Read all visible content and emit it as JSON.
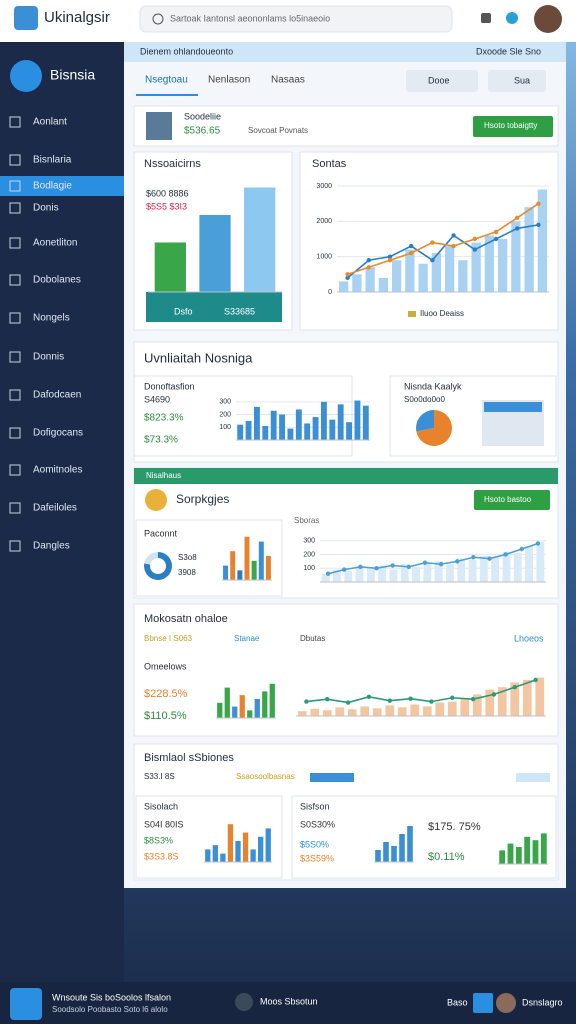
{
  "topbar": {
    "brand": "Ukinalgsir",
    "search": "Sartoak Iantonsl aeononlams lo5inaeoio"
  },
  "sidebar": {
    "title": "Bisnsia",
    "items": [
      "Aonlant",
      "Bisnlaria",
      "Bodlagie",
      "Donis",
      "Aonetliton",
      "Dobolanes",
      "Nongels",
      "Donnis",
      "Dafodcaen",
      "Dofigocans",
      "Aomitnoles",
      "Dafeiloles",
      "Dangles"
    ]
  },
  "header": {
    "title": "Dienem ohlandoueonto",
    "action": "Dxoode Sle Sno"
  },
  "tabs": [
    "Nsegtoau",
    "Nenlason",
    "Nasaas"
  ],
  "buttons": [
    "Dooe",
    "Sua"
  ],
  "profile": {
    "name": "Soodeliie",
    "value": "$536.65",
    "status": "Sovcoat Povnats",
    "button": "Hsoto tobaigtty"
  },
  "panel1": {
    "title": "Nssoaicirns",
    "labels": [
      "$600 8886",
      "$5S5 $3I3"
    ],
    "footer": [
      "Dsfo",
      "S33685"
    ]
  },
  "panel2": {
    "title": "Sontas",
    "legend": "Iluoo Deaiss"
  },
  "section1": {
    "title": "Uvnliaitah Nosniga",
    "left": {
      "title": "Donoftasfion",
      "sub": "S4690",
      "values": [
        "$823.3%",
        "$73.3%"
      ]
    },
    "right": {
      "title": "Nisnda Kaalyk",
      "sub": "S0o0do0o0"
    }
  },
  "section2": {
    "banner": "Nisalhaus",
    "title": "Sorpkgjes",
    "button": "Hsoto bastoo",
    "card": {
      "title": "Paconnt",
      "labels": [
        "S3o8",
        "3908"
      ]
    },
    "chart_title": "Sboras"
  },
  "section3": {
    "title": "Mokosatn ohaloe",
    "filters": [
      "Bbnse I S063",
      "Stanae",
      "Dbutas"
    ],
    "link": "Lhoeos",
    "sub": "Omeelows",
    "values": [
      "$228.5%",
      "$110.5%"
    ]
  },
  "section4": {
    "title": "Bismlaol sSbiones",
    "filters": [
      "S33.I 8S",
      "Ssaosoolbasnas"
    ],
    "left": {
      "title": "Sisolach",
      "values": [
        "S04I 80IS",
        "$8S3%",
        "$3S3.8S"
      ]
    },
    "right": {
      "title": "Sisfson",
      "values": [
        "S0S30%",
        "$5S0%",
        "$3S59%",
        "$175. 75%",
        "$0.11%"
      ]
    }
  },
  "footer": {
    "title": "Wnsoute Sis boSoolos lfsalon",
    "sub": "Soodsolo Poobasto Soto l6 alolo",
    "status": "Moos Sbsotun",
    "button": "Baso",
    "user": "Dsnslagro"
  },
  "charts": [
    {
      "type": "bar",
      "values": [
        45,
        70,
        95
      ],
      "colors": [
        "#3aa64a",
        "#4a9fd8",
        "#8cc8f0"
      ],
      "ylim": [
        0,
        100
      ]
    },
    {
      "type": "combo",
      "ylim": [
        0,
        3000
      ],
      "yticks": [
        0,
        1000,
        2000,
        3000
      ],
      "series": [
        {
          "type": "bar",
          "color": "#a9d2f2",
          "values": [
            300,
            500,
            700,
            400,
            900,
            1200,
            800,
            1100,
            1300,
            900,
            1400,
            1600,
            1500,
            2000,
            2400,
            2900
          ]
        },
        {
          "type": "line",
          "color": "#2a7fc4",
          "values": [
            400,
            900,
            1000,
            1300,
            900,
            1600,
            1200,
            1500,
            1800,
            1900
          ]
        },
        {
          "type": "line",
          "color": "#e98a2c",
          "values": [
            500,
            700,
            900,
            1100,
            1400,
            1300,
            1500,
            1700,
            2100,
            2500
          ]
        }
      ]
    },
    {
      "type": "bar",
      "values": [
        120,
        150,
        260,
        110,
        230,
        200,
        90,
        240,
        130,
        180,
        300,
        160,
        280,
        140,
        310,
        270
      ],
      "color": "#3b8fd6",
      "ylim": [
        0,
        330
      ],
      "yticks": [
        100,
        200,
        300
      ]
    },
    {
      "type": "pie",
      "values": [
        72,
        28
      ],
      "colors": [
        "#e8822d",
        "#3b8fd6"
      ]
    },
    {
      "type": "pie",
      "values": [
        78,
        22
      ],
      "colors": [
        "#2a7fc4",
        "#cfe3f3"
      ]
    },
    {
      "type": "bar",
      "values": [
        3,
        6,
        2,
        9,
        4,
        8,
        5
      ],
      "colors": [
        "#3b8fd6",
        "#e8822d",
        "#2a7fc4",
        "#e8822d",
        "#3aa64a",
        "#3b8fd6",
        "#e8822d"
      ],
      "ylim": [
        0,
        10
      ]
    },
    {
      "type": "combo",
      "ylim": [
        0,
        320
      ],
      "yticks": [
        100,
        200,
        300
      ],
      "series": [
        {
          "type": "bar",
          "color": "#d8eaf8",
          "values": [
            60,
            90,
            80,
            110,
            100,
            120,
            90,
            130,
            110,
            140,
            150,
            130,
            170,
            160,
            190,
            180,
            220,
            210,
            260,
            290
          ]
        },
        {
          "type": "line",
          "color": "#4a9fd8",
          "values": [
            60,
            90,
            110,
            100,
            120,
            110,
            140,
            130,
            150,
            180,
            170,
            200,
            240,
            280
          ]
        }
      ]
    },
    {
      "type": "bar",
      "values": [
        4,
        8,
        3,
        6,
        2,
        5,
        7,
        9
      ],
      "colors": [
        "#3aa64a",
        "#3aa64a",
        "#3b8fd6",
        "#e8822d",
        "#3aa64a",
        "#3b8fd6",
        "#3aa64a",
        "#3aa64a"
      ],
      "ylim": [
        0,
        10
      ]
    },
    {
      "type": "combo",
      "ylim": [
        0,
        100
      ],
      "series": [
        {
          "type": "bar",
          "color": "#f3c6a2",
          "values": [
            10,
            15,
            12,
            18,
            14,
            20,
            16,
            22,
            18,
            24,
            20,
            28,
            30,
            35,
            45,
            55,
            60,
            70,
            75,
            80
          ]
        },
        {
          "type": "line",
          "color": "#2a9a7a",
          "values": [
            30,
            35,
            28,
            40,
            32,
            36,
            30,
            38,
            35,
            45,
            60,
            75
          ]
        }
      ]
    },
    {
      "type": "bar",
      "values": [
        3,
        4,
        2,
        9,
        5,
        7,
        3,
        6,
        8
      ],
      "colors": [
        "#3b8fd6",
        "#3b8fd6",
        "#3b8fd6",
        "#e8822d",
        "#3b8fd6",
        "#e8822d",
        "#3b8fd6",
        "#3b8fd6",
        "#3b8fd6"
      ],
      "ylim": [
        0,
        10
      ]
    },
    {
      "type": "bar",
      "values": [
        3,
        5,
        4,
        7,
        9
      ],
      "color": "#3b8fd6",
      "ylim": [
        0,
        10
      ]
    },
    {
      "type": "bar",
      "values": [
        4,
        6,
        5,
        8,
        7,
        9
      ],
      "color": "#3aa64a",
      "ylim": [
        0,
        10
      ]
    }
  ]
}
